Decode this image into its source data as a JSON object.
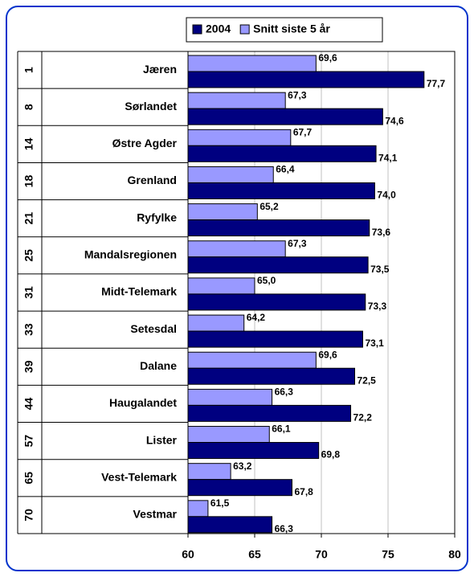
{
  "chart_data": {
    "type": "bar",
    "orientation": "horizontal",
    "ranks": [
      "1",
      "8",
      "14",
      "18",
      "21",
      "25",
      "31",
      "33",
      "39",
      "44",
      "57",
      "65",
      "70"
    ],
    "categories": [
      "Jæren",
      "Sørlandet",
      "Østre Agder",
      "Grenland",
      "Ryfylke",
      "Mandalsregionen",
      "Midt-Telemark",
      "Setesdal",
      "Dalane",
      "Haugalandet",
      "Lister",
      "Vest-Telemark",
      "Vestmar"
    ],
    "series": [
      {
        "name": "2004",
        "color": "#000080",
        "values": [
          77.7,
          74.6,
          74.1,
          74.0,
          73.6,
          73.5,
          73.3,
          73.1,
          72.5,
          72.2,
          69.8,
          67.8,
          66.3
        ],
        "value_labels": [
          "77,7",
          "74,6",
          "74,1",
          "74,0",
          "73,6",
          "73,5",
          "73,3",
          "73,1",
          "72,5",
          "72,2",
          "69,8",
          "67,8",
          "66,3"
        ]
      },
      {
        "name": "Snitt siste 5 år",
        "color": "#9999ff",
        "values": [
          69.6,
          67.3,
          67.7,
          66.4,
          65.2,
          67.3,
          65.0,
          64.2,
          69.6,
          66.3,
          66.1,
          63.2,
          61.5
        ],
        "value_labels": [
          "69,6",
          "67,3",
          "67,7",
          "66,4",
          "65,2",
          "67,3",
          "65,0",
          "64,2",
          "69,6",
          "66,3",
          "66,1",
          "63,2",
          "61,5"
        ]
      }
    ],
    "xlim": [
      60,
      80
    ],
    "xticks": [
      60,
      65,
      70,
      75,
      80
    ],
    "grid": true,
    "legend": "top"
  }
}
